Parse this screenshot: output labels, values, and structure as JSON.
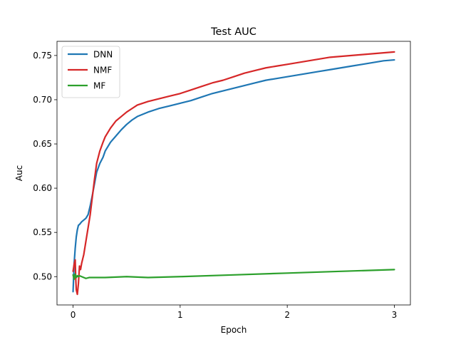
{
  "chart_data": {
    "type": "line",
    "title": "Test AUC",
    "xlabel": "Epoch",
    "ylabel": "Auc",
    "xlim": [
      -0.15,
      3.15
    ],
    "ylim": [
      0.468,
      0.766
    ],
    "x_ticks": [
      0,
      1,
      2,
      3
    ],
    "y_ticks": [
      0.5,
      0.55,
      0.6,
      0.65,
      0.7,
      0.75
    ],
    "grid": false,
    "legend_position": "top-left",
    "series": [
      {
        "name": "DNN",
        "color": "#1f77b4",
        "x": [
          0,
          0.01,
          0.02,
          0.03,
          0.04,
          0.05,
          0.06,
          0.08,
          0.1,
          0.12,
          0.14,
          0.16,
          0.18,
          0.2,
          0.22,
          0.25,
          0.28,
          0.3,
          0.35,
          0.4,
          0.45,
          0.5,
          0.55,
          0.6,
          0.7,
          0.8,
          0.9,
          1.0,
          1.1,
          1.2,
          1.3,
          1.4,
          1.5,
          1.6,
          1.7,
          1.8,
          1.9,
          2.0,
          2.1,
          2.2,
          2.3,
          2.4,
          2.5,
          2.6,
          2.7,
          2.8,
          2.9,
          3.0
        ],
        "values": [
          0.483,
          0.515,
          0.532,
          0.545,
          0.553,
          0.558,
          0.559,
          0.562,
          0.564,
          0.566,
          0.57,
          0.58,
          0.592,
          0.605,
          0.618,
          0.628,
          0.635,
          0.642,
          0.652,
          0.659,
          0.666,
          0.672,
          0.677,
          0.681,
          0.686,
          0.69,
          0.693,
          0.696,
          0.699,
          0.703,
          0.707,
          0.71,
          0.713,
          0.716,
          0.719,
          0.722,
          0.724,
          0.726,
          0.728,
          0.73,
          0.732,
          0.734,
          0.736,
          0.738,
          0.74,
          0.742,
          0.744,
          0.745
        ]
      },
      {
        "name": "NMF",
        "color": "#d62728",
        "x": [
          0,
          0.01,
          0.02,
          0.025,
          0.03,
          0.04,
          0.05,
          0.06,
          0.07,
          0.08,
          0.1,
          0.12,
          0.14,
          0.16,
          0.18,
          0.2,
          0.22,
          0.25,
          0.28,
          0.3,
          0.35,
          0.4,
          0.45,
          0.5,
          0.55,
          0.6,
          0.7,
          0.8,
          0.9,
          1.0,
          1.1,
          1.2,
          1.3,
          1.4,
          1.5,
          1.6,
          1.7,
          1.8,
          1.9,
          2.0,
          2.1,
          2.2,
          2.3,
          2.4,
          2.5,
          2.6,
          2.7,
          2.8,
          2.9,
          3.0
        ],
        "values": [
          0.506,
          0.514,
          0.519,
          0.498,
          0.485,
          0.48,
          0.492,
          0.512,
          0.508,
          0.515,
          0.525,
          0.54,
          0.555,
          0.57,
          0.59,
          0.61,
          0.628,
          0.642,
          0.652,
          0.658,
          0.668,
          0.676,
          0.681,
          0.686,
          0.69,
          0.694,
          0.698,
          0.701,
          0.704,
          0.707,
          0.711,
          0.715,
          0.719,
          0.722,
          0.726,
          0.73,
          0.733,
          0.736,
          0.738,
          0.74,
          0.742,
          0.744,
          0.746,
          0.748,
          0.749,
          0.75,
          0.751,
          0.752,
          0.753,
          0.754
        ]
      },
      {
        "name": "MF",
        "color": "#2ca02c",
        "x": [
          0,
          0.01,
          0.02,
          0.03,
          0.04,
          0.05,
          0.06,
          0.08,
          0.1,
          0.12,
          0.15,
          0.2,
          0.3,
          0.5,
          0.7,
          1.0,
          1.5,
          2.0,
          2.5,
          3.0
        ],
        "values": [
          0.502,
          0.497,
          0.503,
          0.499,
          0.501,
          0.5,
          0.501,
          0.5,
          0.499,
          0.498,
          0.499,
          0.499,
          0.499,
          0.5,
          0.499,
          0.5,
          0.502,
          0.504,
          0.506,
          0.508
        ]
      }
    ]
  }
}
